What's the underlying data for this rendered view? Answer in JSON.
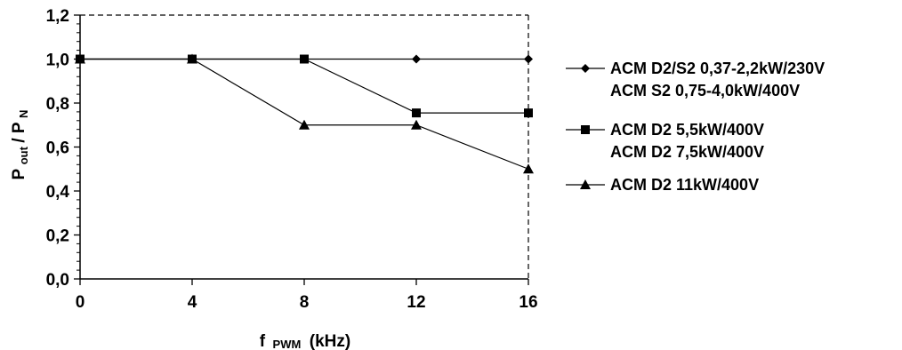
{
  "chart_data": {
    "type": "line",
    "x": [
      0,
      4,
      8,
      12,
      16
    ],
    "x_ticks": [
      "0",
      "4",
      "8",
      "12",
      "16"
    ],
    "y_ticks": [
      "0,0",
      "0,2",
      "0,4",
      "0,6",
      "0,8",
      "1,0",
      "1,2"
    ],
    "xlim": [
      0,
      16
    ],
    "ylim": [
      0,
      1.2
    ],
    "grid": false,
    "legend_position": "right",
    "xlabel": {
      "main": "f",
      "sub": "PWM",
      "tail": "(kHz)"
    },
    "ylabel": {
      "p1": "P",
      "s1": "out",
      "mid": " / P",
      "s2": "N"
    },
    "series": [
      {
        "name": "ACM  D2/S2 0,37-2,2kW/230V",
        "name2": "ACM S2 0,75-4,0kW/400V",
        "marker": "diamond",
        "values": [
          1.0,
          1.0,
          1.0,
          1.0,
          1.0
        ]
      },
      {
        "name": "ACM D2 5,5kW/400V",
        "name2": "ACM D2 7,5kW/400V",
        "marker": "square",
        "values": [
          1.0,
          1.0,
          1.0,
          0.755,
          0.755
        ]
      },
      {
        "name": "ACM D2 11kW/400V",
        "marker": "triangle",
        "values": [
          1.0,
          1.0,
          0.7,
          0.7,
          0.5
        ]
      }
    ]
  }
}
